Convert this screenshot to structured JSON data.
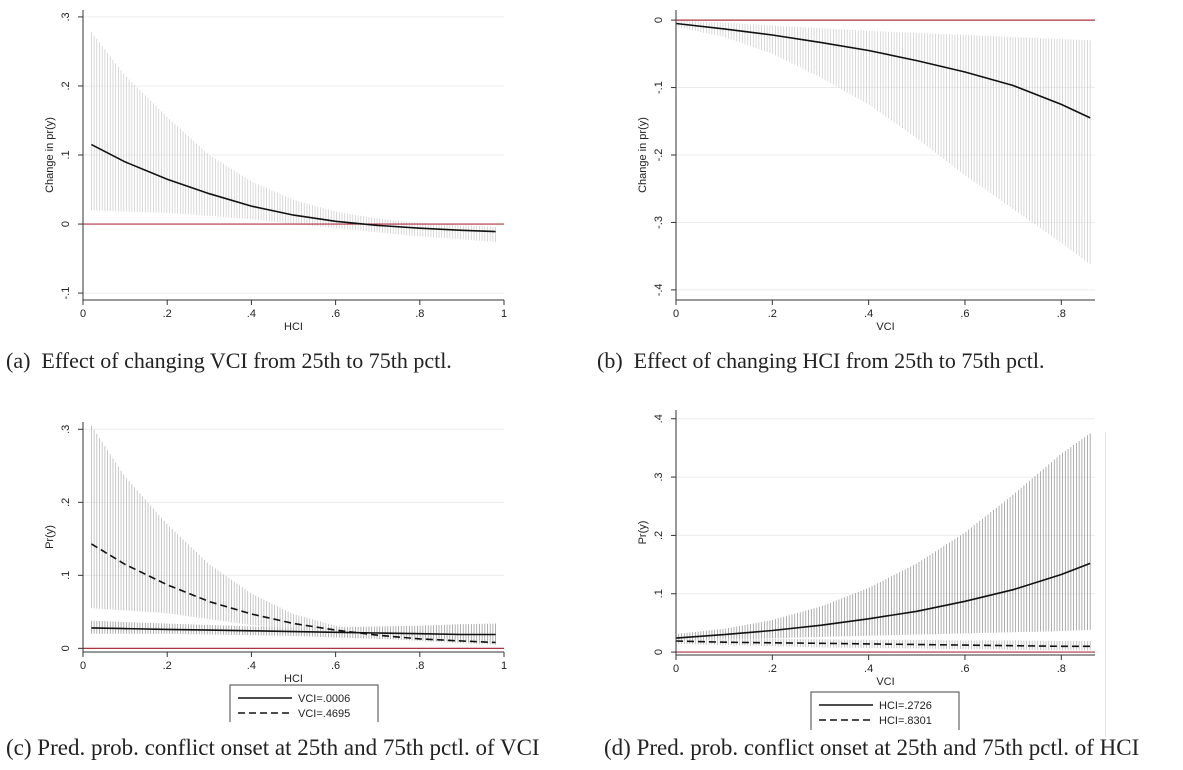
{
  "panels": [
    {
      "id": "a",
      "caption_tag": "(a)",
      "caption": "Effect of changing VCI from 25th to 75th pctl.",
      "chart_data": {
        "type": "line",
        "xlabel": "HCI",
        "ylabel": "Change in pr(y)",
        "xlim": [
          0,
          1
        ],
        "ylim": [
          -0.11,
          0.31
        ],
        "xticks": [
          0,
          0.2,
          0.4,
          0.6,
          0.8,
          1
        ],
        "xtick_labels": [
          "0",
          ".2",
          ".4",
          ".6",
          ".8",
          "1"
        ],
        "yticks": [
          -0.1,
          0,
          0.1,
          0.2,
          0.3
        ],
        "ytick_labels": [
          "-.1",
          "0",
          ".1",
          ".2",
          ".3"
        ],
        "grid": true,
        "reference_line": 0,
        "x": [
          0.02,
          0.1,
          0.2,
          0.3,
          0.4,
          0.5,
          0.6,
          0.7,
          0.8,
          0.9,
          0.98
        ],
        "series": [
          {
            "style": "solid",
            "values": [
              0.115,
              0.09,
              0.065,
              0.044,
              0.026,
              0.013,
              0.004,
              -0.002,
              -0.006,
              -0.009,
              -0.011
            ],
            "ci_lower": [
              0.02,
              0.018,
              0.016,
              0.012,
              0.007,
              0.0,
              -0.006,
              -0.012,
              -0.018,
              -0.022,
              -0.026
            ],
            "ci_upper": [
              0.278,
              0.215,
              0.155,
              0.1,
              0.062,
              0.035,
              0.018,
              0.008,
              0.002,
              -0.002,
              -0.004
            ]
          }
        ],
        "legend": null
      }
    },
    {
      "id": "b",
      "caption_tag": "(b)",
      "caption": "Effect of changing HCI from 25th to 75th pctl.",
      "chart_data": {
        "type": "line",
        "xlabel": "VCI",
        "ylabel": "Change in pr(y)",
        "xlim": [
          0,
          0.87
        ],
        "ylim": [
          -0.415,
          0.015
        ],
        "xticks": [
          0,
          0.2,
          0.4,
          0.6,
          0.8
        ],
        "xtick_labels": [
          "0",
          ".2",
          ".4",
          ".6",
          ".8"
        ],
        "yticks": [
          -0.4,
          -0.3,
          -0.2,
          -0.1,
          0
        ],
        "ytick_labels": [
          "-.4",
          "-.3",
          "-.2",
          "-.1",
          "0"
        ],
        "grid": true,
        "reference_line": 0,
        "x": [
          0.0,
          0.1,
          0.2,
          0.3,
          0.4,
          0.5,
          0.6,
          0.7,
          0.8,
          0.86
        ],
        "series": [
          {
            "style": "solid",
            "values": [
              -0.005,
              -0.013,
              -0.022,
              -0.033,
              -0.045,
              -0.06,
              -0.077,
              -0.097,
              -0.125,
              -0.145
            ],
            "ci_lower": [
              -0.01,
              -0.025,
              -0.05,
              -0.085,
              -0.125,
              -0.175,
              -0.23,
              -0.28,
              -0.33,
              -0.362
            ],
            "ci_upper": [
              0.0,
              -0.004,
              -0.008,
              -0.012,
              -0.016,
              -0.019,
              -0.022,
              -0.025,
              -0.028,
              -0.03
            ]
          }
        ],
        "legend": null
      }
    },
    {
      "id": "c",
      "caption_tag": "(c)",
      "caption": "Pred. prob. conflict onset at 25th and 75th pctl. of VCI",
      "chart_data": {
        "type": "line",
        "xlabel": "HCI",
        "ylabel": "Pr(y)",
        "xlim": [
          0,
          1
        ],
        "ylim": [
          -0.005,
          0.31
        ],
        "xticks": [
          0,
          0.2,
          0.4,
          0.6,
          0.8,
          1
        ],
        "xtick_labels": [
          "0",
          ".2",
          ".4",
          ".6",
          ".8",
          "1"
        ],
        "yticks": [
          0,
          0.1,
          0.2,
          0.3
        ],
        "ytick_labels": [
          "0",
          ".1",
          ".2",
          ".3"
        ],
        "grid": true,
        "reference_line": 0,
        "x": [
          0.02,
          0.1,
          0.2,
          0.3,
          0.4,
          0.5,
          0.6,
          0.7,
          0.8,
          0.9,
          0.98
        ],
        "series": [
          {
            "name": "VCI=.0006",
            "style": "solid",
            "values": [
              0.028,
              0.027,
              0.026,
              0.025,
              0.024,
              0.023,
              0.022,
              0.021,
              0.02,
              0.019,
              0.019
            ],
            "ci_lower": [
              0.02,
              0.02,
              0.02,
              0.019,
              0.018,
              0.017,
              0.015,
              0.013,
              0.011,
              0.009,
              0.008
            ],
            "ci_upper": [
              0.038,
              0.036,
              0.034,
              0.032,
              0.03,
              0.029,
              0.029,
              0.03,
              0.031,
              0.033,
              0.034
            ]
          },
          {
            "name": "VCI=.4695",
            "style": "dashed",
            "values": [
              0.143,
              0.115,
              0.087,
              0.064,
              0.047,
              0.034,
              0.025,
              0.018,
              0.013,
              0.01,
              0.008
            ],
            "ci_lower": [
              0.055,
              0.052,
              0.048,
              0.04,
              0.032,
              0.025,
              0.019,
              0.014,
              0.01,
              0.007,
              0.005
            ],
            "ci_upper": [
              0.305,
              0.235,
              0.17,
              0.115,
              0.075,
              0.047,
              0.031,
              0.022,
              0.016,
              0.012,
              0.011
            ]
          }
        ],
        "legend": "bottom"
      }
    },
    {
      "id": "d",
      "caption_tag": "(d)",
      "caption": "Pred. prob. conflict onset at 25th and 75th pctl. of HCI",
      "chart_data": {
        "type": "line",
        "xlabel": "VCI",
        "ylabel": "Pr(y)",
        "xlim": [
          0,
          0.87
        ],
        "ylim": [
          -0.005,
          0.415
        ],
        "xticks": [
          0,
          0.2,
          0.4,
          0.6,
          0.8
        ],
        "xtick_labels": [
          "0",
          ".2",
          ".4",
          ".6",
          ".8"
        ],
        "yticks": [
          0,
          0.1,
          0.2,
          0.3,
          0.4
        ],
        "ytick_labels": [
          "0",
          ".1",
          ".2",
          ".3",
          ".4"
        ],
        "grid": true,
        "reference_line": 0,
        "x": [
          0.0,
          0.1,
          0.2,
          0.3,
          0.4,
          0.5,
          0.6,
          0.7,
          0.8,
          0.86
        ],
        "series": [
          {
            "name": "HCI=.2726",
            "style": "solid",
            "values": [
              0.024,
              0.03,
              0.037,
              0.046,
              0.057,
              0.07,
              0.087,
              0.107,
              0.133,
              0.152
            ],
            "ci_lower": [
              0.019,
              0.022,
              0.024,
              0.026,
              0.028,
              0.03,
              0.032,
              0.034,
              0.036,
              0.038
            ],
            "ci_upper": [
              0.031,
              0.04,
              0.055,
              0.078,
              0.11,
              0.152,
              0.205,
              0.27,
              0.34,
              0.375
            ]
          },
          {
            "name": "HCI=.8301",
            "style": "dashed",
            "values": [
              0.019,
              0.017,
              0.016,
              0.015,
              0.014,
              0.013,
              0.012,
              0.011,
              0.01,
              0.01
            ],
            "ci_lower": [
              0.014,
              0.012,
              0.01,
              0.008,
              0.007,
              0.006,
              0.005,
              0.004,
              0.003,
              0.003
            ],
            "ci_upper": [
              0.025,
              0.024,
              0.023,
              0.022,
              0.021,
              0.021,
              0.02,
              0.02,
              0.019,
              0.019
            ]
          }
        ],
        "legend": "bottom"
      }
    }
  ]
}
